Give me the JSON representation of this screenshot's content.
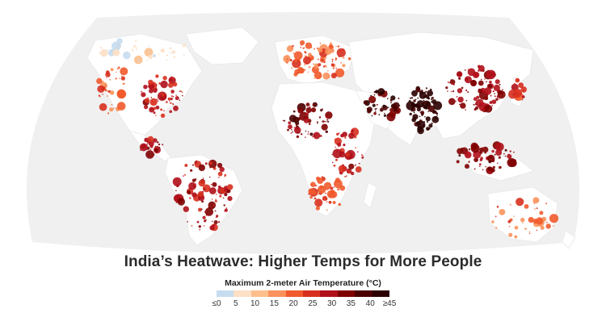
{
  "map": {
    "title": "India’s Heatwave: Higher Temps for More People",
    "projection": "robinson",
    "ocean_color": "#f2f2f2",
    "land_color": "#ffffff",
    "marker_encoding": "city points sized by population, colored by maximum air temperature"
  },
  "legend": {
    "label": "Maximum 2-meter Air Temperature (°C)",
    "colors": [
      "#c7dcef",
      "#fde0c5",
      "#fcbf8c",
      "#f9925c",
      "#f15a2c",
      "#d7301f",
      "#b0101a",
      "#7f0000",
      "#4a0000",
      "#2a0000"
    ],
    "ticks": [
      "≤0",
      "5",
      "10",
      "15",
      "20",
      "25",
      "30",
      "35",
      "40",
      "≥45"
    ]
  },
  "regions": [
    {
      "name": "north-america-west",
      "temp": 20
    },
    {
      "name": "north-america-east",
      "temp": 28
    },
    {
      "name": "canada-arctic",
      "temp": 5
    },
    {
      "name": "central-america",
      "temp": 32
    },
    {
      "name": "south-america",
      "temp": 30
    },
    {
      "name": "europe",
      "temp": 20
    },
    {
      "name": "west-africa",
      "temp": 35
    },
    {
      "name": "east-africa",
      "temp": 28
    },
    {
      "name": "southern-africa",
      "temp": 22
    },
    {
      "name": "middle-east",
      "temp": 40
    },
    {
      "name": "india",
      "temp": 45
    },
    {
      "name": "china",
      "temp": 32
    },
    {
      "name": "southeast-asia",
      "temp": 33
    },
    {
      "name": "japan",
      "temp": 24
    },
    {
      "name": "australia",
      "temp": 20
    }
  ]
}
